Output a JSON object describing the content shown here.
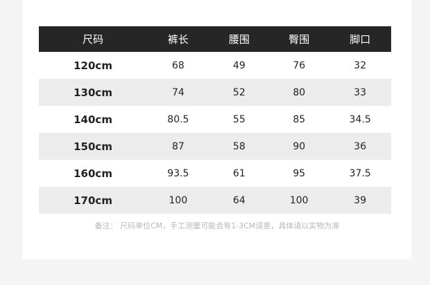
{
  "table": {
    "headers": [
      "尺码",
      "裤长",
      "腰围",
      "臀围",
      "脚口"
    ],
    "rows": [
      [
        "120cm",
        "68",
        "49",
        "76",
        "32"
      ],
      [
        "130cm",
        "74",
        "52",
        "80",
        "33"
      ],
      [
        "140cm",
        "80.5",
        "55",
        "85",
        "34.5"
      ],
      [
        "150cm",
        "87",
        "58",
        "90",
        "36"
      ],
      [
        "160cm",
        "93.5",
        "61",
        "95",
        "37.5"
      ],
      [
        "170cm",
        "100",
        "64",
        "100",
        "39"
      ]
    ]
  },
  "note": "备注：  尺码单位CM，手工测量可能会有1-3CM误差，具体请以实物为准"
}
